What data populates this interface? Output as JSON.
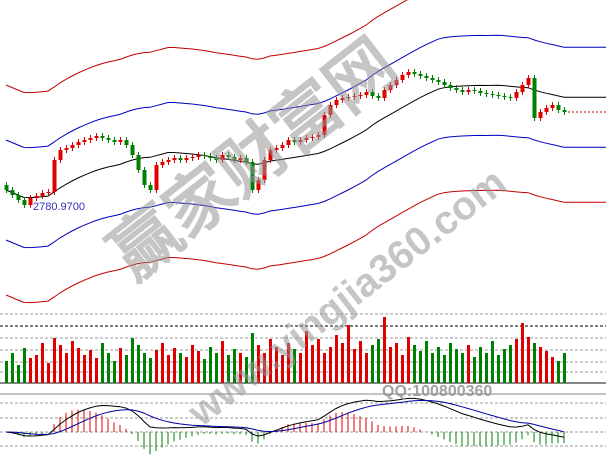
{
  "chart_data": {
    "type": "candlestick",
    "low_label": "2780.9700",
    "close": [
      2861,
      2841,
      2821,
      2801,
      2829,
      2837,
      2849,
      2853,
      2981,
      3021,
      3029,
      3041,
      3053,
      3061,
      3069,
      3077,
      3069,
      3061,
      3053,
      3061,
      3041,
      3001,
      2941,
      2881,
      2861,
      2961,
      2973,
      2981,
      2989,
      2981,
      2989,
      2993,
      3001,
      2997,
      2989,
      2981,
      3001,
      2993,
      2981,
      2989,
      2973,
      2861,
      2901,
      2981,
      3021,
      3029,
      3041,
      3061,
      3053,
      3061,
      3069,
      3073,
      3081,
      3161,
      3201,
      3221,
      3229,
      3233,
      3237,
      3241,
      3253,
      3237,
      3229,
      3261,
      3281,
      3301,
      3321,
      3333,
      3325,
      3317,
      3309,
      3301,
      3293,
      3281,
      3269,
      3261,
      3253,
      3261,
      3257,
      3249,
      3245,
      3241,
      3237,
      3233,
      3229,
      3253,
      3281,
      3309,
      3149,
      3173,
      3189,
      3201,
      3181,
      3173
    ],
    "volume": [
      22,
      30,
      18,
      35,
      25,
      28,
      40,
      20,
      45,
      38,
      30,
      42,
      35,
      28,
      33,
      25,
      40,
      30,
      22,
      35,
      28,
      45,
      38,
      30,
      25,
      33,
      40,
      28,
      35,
      30,
      26,
      38,
      32,
      24,
      36,
      30,
      42,
      28,
      34,
      30,
      26,
      50,
      38,
      30,
      44,
      36,
      28,
      40,
      34,
      30,
      52,
      38,
      44,
      30,
      36,
      48,
      40,
      58,
      34,
      42,
      30,
      38,
      44,
      66,
      36,
      40,
      28,
      46,
      38,
      32,
      42,
      30,
      36,
      28,
      40,
      34,
      30,
      38,
      26,
      36,
      30,
      42,
      28,
      34,
      38,
      44,
      60,
      46,
      40,
      36,
      32,
      26,
      22,
      30
    ],
    "colors": {
      "up": "#e00000",
      "down": "#008000",
      "ma": "#000000",
      "band_inner": "#0000c0",
      "band_outer": "#c00000"
    }
  },
  "watermark": {
    "site_name": "赢家财富网",
    "url": "www.yingjia360.com",
    "qq": "QQ:100800360"
  }
}
